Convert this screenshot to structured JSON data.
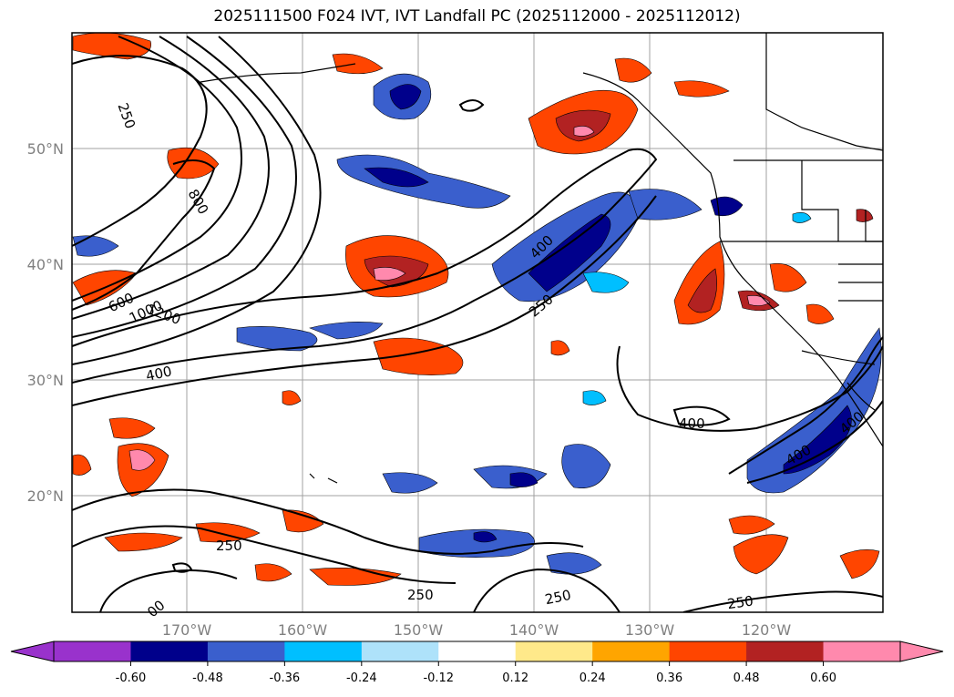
{
  "title": "2025111500 F024 IVT, IVT Landfall PC (2025112000 - 2025112012)",
  "lon_labels": [
    "170°W",
    "160°W",
    "150°W",
    "140°W",
    "130°W",
    "120°W"
  ],
  "lat_labels": [
    "50°N",
    "40°N",
    "30°N",
    "20°N"
  ],
  "colorbar": {
    "colors": [
      "#9932cc",
      "#00008b",
      "#3a5fcd",
      "#00bfff",
      "#aee2fa",
      "#ffffff",
      "#ffe98a",
      "#ffa500",
      "#ff4500",
      "#b22222",
      "#ff89ad"
    ],
    "tick_labels": [
      "-0.60",
      "-0.48",
      "-0.36",
      "-0.24",
      "-0.12",
      "0.12",
      "0.24",
      "0.36",
      "0.48",
      "0.60"
    ],
    "extend": "both"
  },
  "contour_labels": [
    "250",
    "800",
    "600",
    "1000",
    "1200",
    "400",
    "400",
    "250",
    "400",
    "400",
    "400",
    "250",
    "250",
    "250",
    "250",
    "00"
  ]
}
